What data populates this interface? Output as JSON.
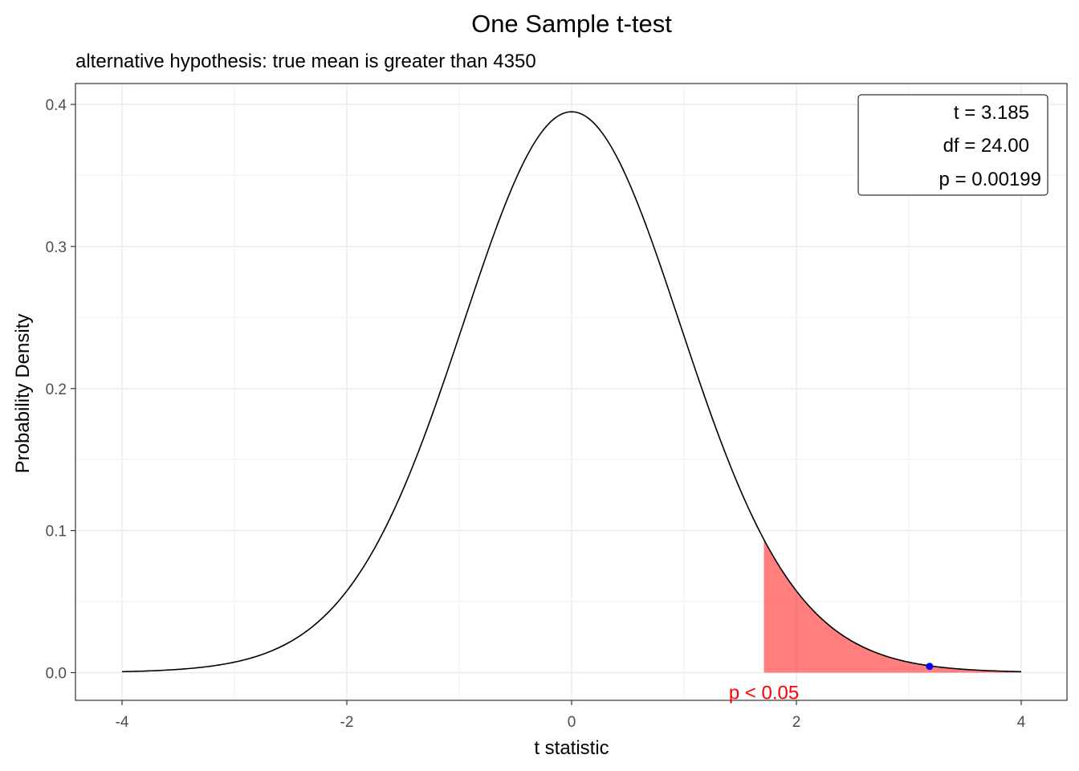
{
  "chart_data": {
    "type": "area",
    "title": "One Sample t-test",
    "subtitle": "alternative hypothesis: true mean is greater than 4350",
    "xlabel": "t statistic",
    "ylabel": "Probability Density",
    "xlim": [
      -4,
      4
    ],
    "ylim": [
      0,
      0.4
    ],
    "x_ticks": [
      "-4",
      "-2",
      "0",
      "2",
      "4"
    ],
    "y_ticks": [
      "0.0",
      "0.1",
      "0.2",
      "0.3",
      "0.4"
    ],
    "grid": true,
    "series": [
      {
        "type": "line",
        "values_from": "t distribution density",
        "df": 24,
        "color": "#000000"
      }
    ],
    "shaded_region": {
      "from": 1.711,
      "to": 4,
      "color": "#ff0000",
      "label": "p < 0.05"
    },
    "observed_point": {
      "x": 3.185,
      "y": 0.0044,
      "color": "#0000ff"
    },
    "stats_box": {
      "position": "top-right",
      "lines": [
        "t = 3.185",
        "df = 24.00",
        "p = 0.00199"
      ]
    }
  }
}
